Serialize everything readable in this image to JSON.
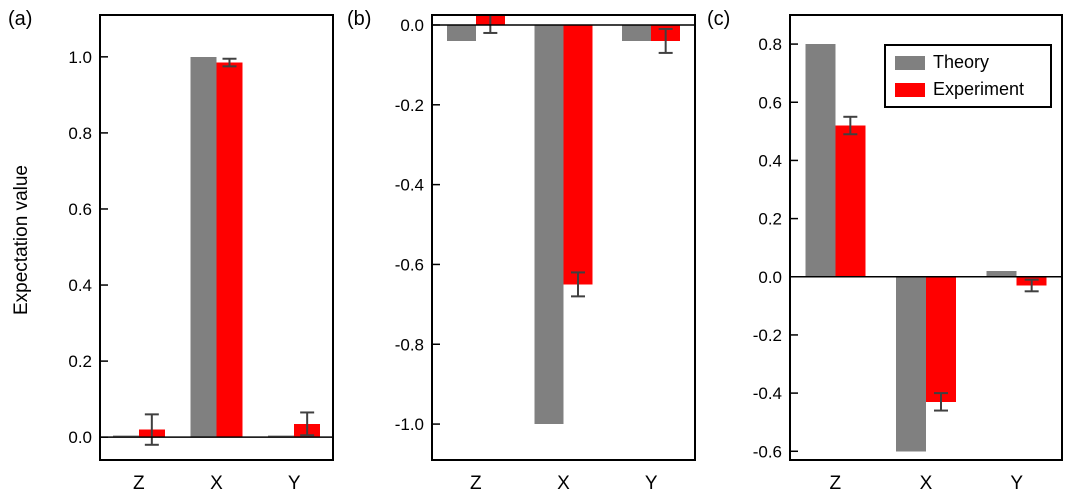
{
  "figure": {
    "background": "#ffffff",
    "ylabel": "Expectation value"
  },
  "colors": {
    "theory": "#808080",
    "experiment": "#ff0000",
    "error_bar": "#404040",
    "axis": "#000000"
  },
  "legend": {
    "entries": [
      {
        "label": "Theory",
        "color": "#808080"
      },
      {
        "label": "Experiment",
        "color": "#ff0000"
      }
    ]
  },
  "chart_data": [
    {
      "type": "bar",
      "panel": "(a)",
      "ylabel": "Expectation value",
      "categories": [
        "Z",
        "X",
        "Y"
      ],
      "series": [
        {
          "name": "Theory",
          "values": [
            0.005,
            1.0,
            0.005
          ]
        },
        {
          "name": "Experiment",
          "values": [
            0.02,
            0.985,
            0.035
          ],
          "errors": [
            0.04,
            0.01,
            0.03
          ]
        }
      ],
      "ylim": [
        -0.06,
        1.11
      ],
      "yticks": [
        1.0,
        0.8,
        0.6,
        0.4,
        0.2,
        0.0
      ],
      "grid": false,
      "legend_position": "none"
    },
    {
      "type": "bar",
      "panel": "(b)",
      "categories": [
        "Z",
        "X",
        "Y"
      ],
      "series": [
        {
          "name": "Theory",
          "values": [
            -0.04,
            -1.0,
            -0.04
          ]
        },
        {
          "name": "Experiment",
          "values": [
            0.03,
            -0.65,
            -0.04
          ],
          "errors": [
            0.05,
            0.03,
            0.03
          ]
        }
      ],
      "ylim": [
        -1.09,
        0.025
      ],
      "yticks": [
        0.0,
        -0.2,
        -0.4,
        -0.6,
        -0.8,
        -1.0
      ],
      "grid": false,
      "legend_position": "none"
    },
    {
      "type": "bar",
      "panel": "(c)",
      "categories": [
        "Z",
        "X",
        "Y"
      ],
      "series": [
        {
          "name": "Theory",
          "values": [
            0.8,
            -0.6,
            0.02
          ]
        },
        {
          "name": "Experiment",
          "values": [
            0.52,
            -0.43,
            -0.03
          ],
          "errors": [
            0.03,
            0.03,
            0.02
          ]
        }
      ],
      "ylim": [
        -0.63,
        0.9
      ],
      "yticks": [
        0.8,
        0.6,
        0.4,
        0.2,
        0.0,
        -0.2,
        -0.4,
        -0.6
      ],
      "grid": false,
      "legend_position": "top-right"
    }
  ]
}
